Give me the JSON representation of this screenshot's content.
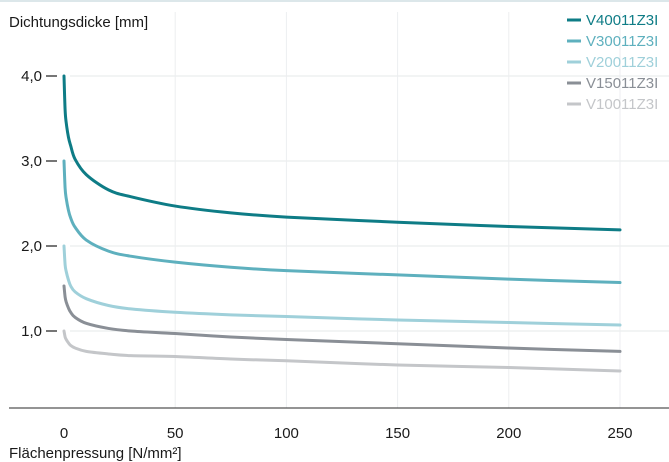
{
  "chart_data": {
    "type": "line",
    "ylabel": "Dichtungsdicke [mm]",
    "xlabel": "Flächenpressung [N/mm²]",
    "xlim": [
      -25,
      270
    ],
    "ylim": [
      -1.0,
      4.0
    ],
    "x_ticks": [
      0,
      50,
      100,
      150,
      200,
      250
    ],
    "x_tick_labels": [
      "0",
      "50",
      "100",
      "150",
      "200",
      "250"
    ],
    "y_ticks": [
      1.0,
      2.0,
      3.0,
      4.0
    ],
    "y_tick_labels": [
      "1,0",
      "2,0",
      "3,0",
      "4,0"
    ],
    "grid": true,
    "legend_position": "top-right",
    "series": [
      {
        "name": "V40011Z3I",
        "color": "#0e7c86",
        "x": [
          0,
          0.5,
          1,
          2,
          3,
          5,
          10,
          20,
          30,
          50,
          75,
          100,
          150,
          200,
          250
        ],
        "y": [
          4.0,
          3.6,
          3.45,
          3.28,
          3.18,
          3.02,
          2.84,
          2.66,
          2.58,
          2.47,
          2.39,
          2.34,
          2.28,
          2.23,
          2.19
        ]
      },
      {
        "name": "V30011Z3I",
        "color": "#5eb0be",
        "x": [
          0,
          0.5,
          1,
          2,
          3,
          5,
          10,
          20,
          30,
          50,
          75,
          100,
          150,
          200,
          250
        ],
        "y": [
          3.0,
          2.68,
          2.56,
          2.42,
          2.33,
          2.22,
          2.07,
          1.94,
          1.88,
          1.81,
          1.75,
          1.71,
          1.66,
          1.61,
          1.57
        ]
      },
      {
        "name": "V20011Z3I",
        "color": "#9fd0da",
        "x": [
          0,
          0.5,
          1,
          2,
          3,
          5,
          10,
          20,
          30,
          50,
          75,
          100,
          150,
          200,
          250
        ],
        "y": [
          2.0,
          1.78,
          1.7,
          1.6,
          1.53,
          1.46,
          1.38,
          1.3,
          1.26,
          1.22,
          1.19,
          1.17,
          1.13,
          1.1,
          1.07
        ]
      },
      {
        "name": "V15011Z3I",
        "color": "#8a8f96",
        "x": [
          0,
          0.5,
          1,
          2,
          3,
          5,
          10,
          20,
          30,
          50,
          75,
          100,
          150,
          200,
          250
        ],
        "y": [
          1.53,
          1.4,
          1.34,
          1.27,
          1.22,
          1.16,
          1.09,
          1.03,
          1.0,
          0.97,
          0.93,
          0.9,
          0.85,
          0.8,
          0.76
        ]
      },
      {
        "name": "V10011Z3I",
        "color": "#c4c6c9",
        "x": [
          0,
          0.5,
          1,
          2,
          3,
          5,
          10,
          20,
          30,
          50,
          75,
          100,
          150,
          200,
          250
        ],
        "y": [
          1.0,
          0.93,
          0.9,
          0.86,
          0.83,
          0.8,
          0.76,
          0.73,
          0.71,
          0.7,
          0.67,
          0.65,
          0.6,
          0.57,
          0.53
        ]
      }
    ]
  }
}
